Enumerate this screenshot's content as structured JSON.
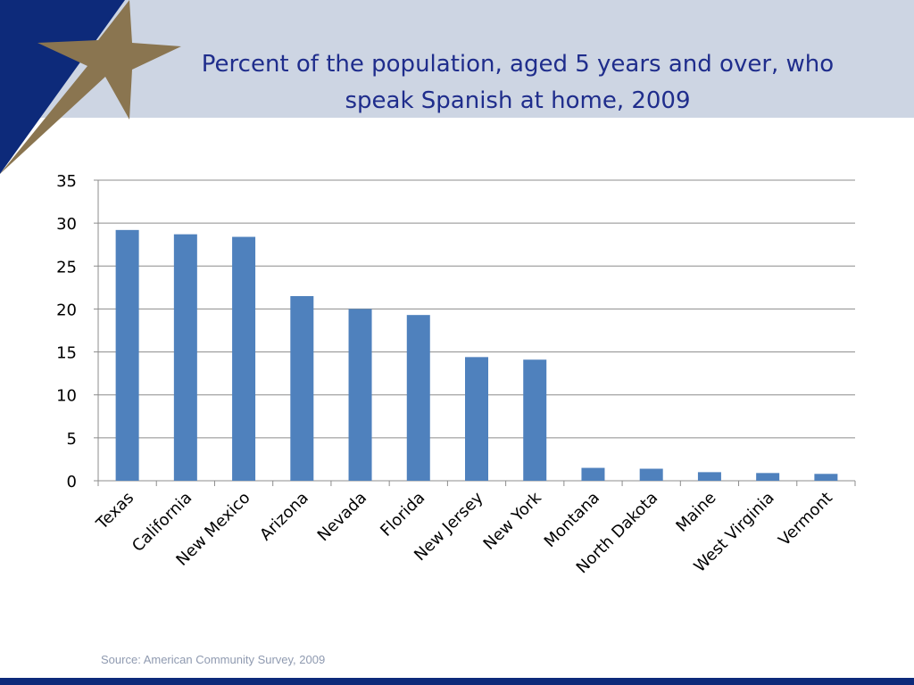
{
  "slide": {
    "title_line1": "Percent of the population, aged 5 years and over, who",
    "title_line2": "speak Spanish at home, 2009",
    "source": "Source: American Community Survey, 2009"
  },
  "colors": {
    "header_band": "#cdd5e3",
    "navy": "#0d2a7a",
    "gold_star": "#8a7550",
    "bar": "#4f81bd",
    "title": "#1f2d8c"
  },
  "chart_data": {
    "type": "bar",
    "categories": [
      "Texas",
      "California",
      "New Mexico",
      "Arizona",
      "Nevada",
      "Florida",
      "New Jersey",
      "New York",
      "Montana",
      "North Dakota",
      "Maine",
      "West Virginia",
      "Vermont"
    ],
    "values": [
      29.2,
      28.7,
      28.4,
      21.5,
      20.0,
      19.3,
      14.4,
      14.1,
      1.5,
      1.4,
      1.0,
      0.9,
      0.8
    ],
    "ylim": [
      0,
      35
    ],
    "yticks": [
      "0",
      "5",
      "10",
      "15",
      "20",
      "25",
      "30",
      "35"
    ],
    "grid": true,
    "legend": "none"
  }
}
